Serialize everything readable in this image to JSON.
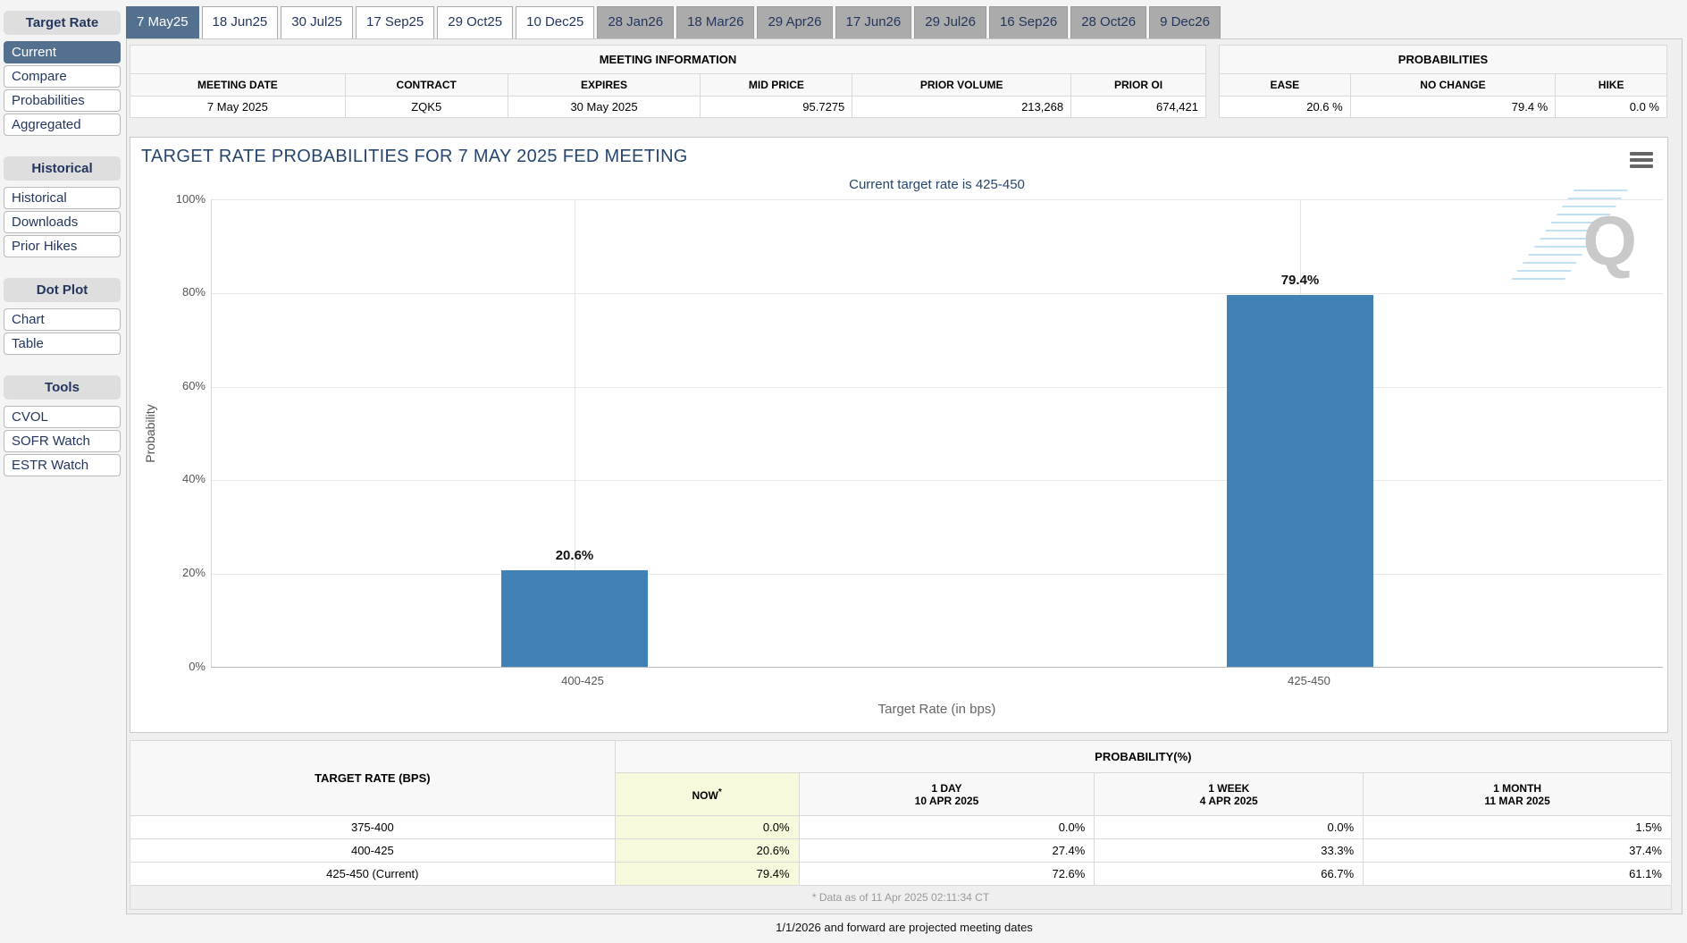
{
  "colors": {
    "accent": "#53718f",
    "bar": "#4181B6",
    "now_highlight": "#f8f8dc",
    "navy": "#24365e"
  },
  "sidebar": {
    "sections": [
      {
        "header": "Target Rate",
        "items": [
          {
            "label": "Current",
            "selected": true
          },
          {
            "label": "Compare"
          },
          {
            "label": "Probabilities"
          },
          {
            "label": "Aggregated"
          }
        ]
      },
      {
        "header": "Historical",
        "items": [
          {
            "label": "Historical"
          },
          {
            "label": "Downloads"
          },
          {
            "label": "Prior Hikes"
          }
        ]
      },
      {
        "header": "Dot Plot",
        "items": [
          {
            "label": "Chart"
          },
          {
            "label": "Table"
          }
        ]
      },
      {
        "header": "Tools",
        "items": [
          {
            "label": "CVOL"
          },
          {
            "label": "SOFR Watch"
          },
          {
            "label": "ESTR Watch"
          }
        ]
      }
    ]
  },
  "tabs": {
    "items": [
      {
        "label": "7 May25",
        "state": "selected"
      },
      {
        "label": "18 Jun25",
        "state": "normal"
      },
      {
        "label": "30 Jul25",
        "state": "normal"
      },
      {
        "label": "17 Sep25",
        "state": "normal"
      },
      {
        "label": "29 Oct25",
        "state": "normal"
      },
      {
        "label": "10 Dec25",
        "state": "normal"
      },
      {
        "label": "28 Jan26",
        "state": "projected"
      },
      {
        "label": "18 Mar26",
        "state": "projected"
      },
      {
        "label": "29 Apr26",
        "state": "projected"
      },
      {
        "label": "17 Jun26",
        "state": "projected"
      },
      {
        "label": "29 Jul26",
        "state": "projected"
      },
      {
        "label": "16 Sep26",
        "state": "projected"
      },
      {
        "label": "28 Oct26",
        "state": "projected"
      },
      {
        "label": "9 Dec26",
        "state": "projected"
      }
    ]
  },
  "meeting_info": {
    "title": "MEETING INFORMATION",
    "columns": [
      "MEETING DATE",
      "CONTRACT",
      "EXPIRES",
      "MID PRICE",
      "PRIOR VOLUME",
      "PRIOR OI"
    ],
    "values": [
      "7 May 2025",
      "ZQK5",
      "30 May 2025",
      "95.7275",
      "213,268",
      "674,421"
    ]
  },
  "probabilities": {
    "title": "PROBABILITIES",
    "columns": [
      "EASE",
      "NO CHANGE",
      "HIKE"
    ],
    "values": [
      "20.6 %",
      "79.4 %",
      "0.0 %"
    ]
  },
  "chart_data": {
    "type": "bar",
    "title": "TARGET RATE PROBABILITIES FOR 7 MAY 2025 FED MEETING",
    "subtitle": "Current target rate is 425-450",
    "categories": [
      "400-425",
      "425-450"
    ],
    "values": [
      20.6,
      79.4
    ],
    "labels": [
      "20.6%",
      "79.4%"
    ],
    "xlabel": "Target Rate (in bps)",
    "ylabel": "Probability",
    "ylim": [
      0,
      100
    ],
    "yticks": [
      "100%",
      "80%",
      "60%",
      "40%",
      "20%",
      "0%"
    ],
    "grid": "on",
    "legend": "none",
    "bar_color": "#4181B6"
  },
  "history_table": {
    "rate_header": "TARGET RATE (BPS)",
    "group_header": "PROBABILITY(%)",
    "now_label": "NOW",
    "now_sup": "*",
    "subheaders": [
      {
        "label": "1 DAY",
        "date": "10 APR 2025"
      },
      {
        "label": "1 WEEK",
        "date": "4 APR 2025"
      },
      {
        "label": "1 MONTH",
        "date": "11 MAR 2025"
      }
    ],
    "rows": [
      [
        "375-400",
        "0.0%",
        "0.0%",
        "0.0%",
        "1.5%"
      ],
      [
        "400-425",
        "20.6%",
        "27.4%",
        "33.3%",
        "37.4%"
      ],
      [
        "425-450 (Current)",
        "79.4%",
        "72.6%",
        "66.7%",
        "61.1%"
      ]
    ],
    "footnote": "* Data as of 11 Apr 2025 02:11:34 CT"
  },
  "projection_note": "1/1/2026 and forward are projected meeting dates"
}
